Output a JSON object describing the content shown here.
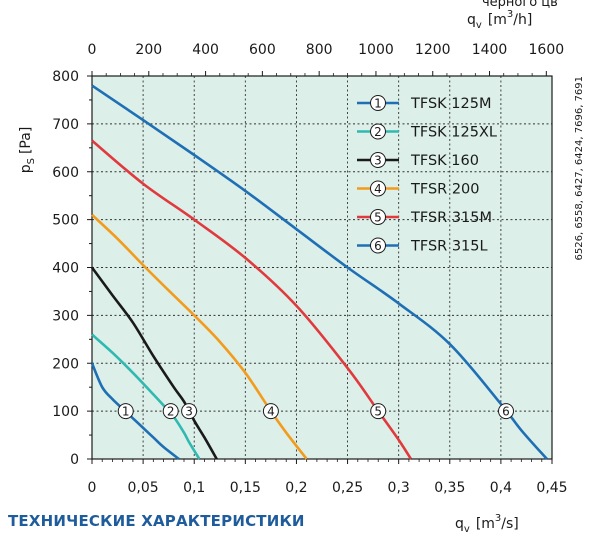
{
  "header_cut_text": "черного цв",
  "section_heading": "ТЕХНИЧЕСКИЕ ХАРАКТЕРИСТИКИ",
  "side_note": "6526, 6558, 6427, 6424, 7696, 7691",
  "chart_data": {
    "type": "line",
    "title": "",
    "ylabel": {
      "main": "p",
      "sub": "S",
      "unit": "[Pa]"
    },
    "xlabel_bottom": {
      "main": "q",
      "sub": "v",
      "unit_pre": "[m",
      "unit_sup": "3",
      "unit_post": "/s]"
    },
    "xlabel_top": {
      "main": "q",
      "sub": "v",
      "unit_pre": "[m",
      "unit_sup": "3",
      "unit_post": "/h]"
    },
    "xlim": [
      0,
      0.45
    ],
    "ylim": [
      0,
      800
    ],
    "x_top_lim": [
      0,
      1620
    ],
    "x_ticks_bottom": [
      "0",
      "0,05",
      "0,1",
      "0,15",
      "0,2",
      "0,25",
      "0,3",
      "0,35",
      "0,4",
      "0,45"
    ],
    "x_ticks_top": [
      "0",
      "200",
      "400",
      "600",
      "800",
      "1000",
      "1200",
      "1400",
      "1600"
    ],
    "y_ticks": [
      "0",
      "100",
      "200",
      "300",
      "400",
      "500",
      "600",
      "700",
      "800"
    ],
    "grid": true,
    "legend_position": "top-right",
    "colors": {
      "plot_bg": "#dcefe9",
      "grid": "#333333"
    },
    "series": [
      {
        "name": "TFSK 125M",
        "marker": "1",
        "color": "#1f6fb5",
        "points": [
          [
            0,
            200
          ],
          [
            0.01,
            150
          ],
          [
            0.02,
            125
          ],
          [
            0.03,
            105
          ],
          [
            0.04,
            85
          ],
          [
            0.05,
            65
          ],
          [
            0.06,
            45
          ],
          [
            0.07,
            25
          ],
          [
            0.085,
            0
          ]
        ],
        "label_at": [
          0.033,
          100
        ]
      },
      {
        "name": "TFSK 125XL",
        "marker": "2",
        "color": "#2fb9b0",
        "points": [
          [
            0,
            260
          ],
          [
            0.02,
            222
          ],
          [
            0.04,
            180
          ],
          [
            0.06,
            135
          ],
          [
            0.07,
            112
          ],
          [
            0.08,
            88
          ],
          [
            0.09,
            55
          ],
          [
            0.095,
            35
          ],
          [
            0.105,
            0
          ]
        ],
        "label_at": [
          0.077,
          100
        ]
      },
      {
        "name": "TFSK 160",
        "marker": "3",
        "color": "#1a1a1a",
        "points": [
          [
            0,
            400
          ],
          [
            0.02,
            342
          ],
          [
            0.04,
            285
          ],
          [
            0.06,
            215
          ],
          [
            0.08,
            150
          ],
          [
            0.09,
            120
          ],
          [
            0.1,
            80
          ],
          [
            0.11,
            45
          ],
          [
            0.122,
            0
          ]
        ],
        "label_at": [
          0.095,
          100
        ]
      },
      {
        "name": "TFSR 200",
        "marker": "4",
        "color": "#f29b1c",
        "points": [
          [
            0,
            510
          ],
          [
            0.025,
            460
          ],
          [
            0.05,
            405
          ],
          [
            0.075,
            352
          ],
          [
            0.1,
            300
          ],
          [
            0.125,
            245
          ],
          [
            0.15,
            180
          ],
          [
            0.175,
            100
          ],
          [
            0.19,
            55
          ],
          [
            0.21,
            0
          ]
        ],
        "label_at": [
          0.175,
          100
        ]
      },
      {
        "name": "TFSR 315M",
        "marker": "5",
        "color": "#e03a3e",
        "points": [
          [
            0,
            665
          ],
          [
            0.05,
            575
          ],
          [
            0.1,
            500
          ],
          [
            0.15,
            420
          ],
          [
            0.2,
            320
          ],
          [
            0.25,
            190
          ],
          [
            0.28,
            100
          ],
          [
            0.3,
            40
          ],
          [
            0.312,
            0
          ]
        ],
        "label_at": [
          0.28,
          100
        ]
      },
      {
        "name": "TFSR 315L",
        "marker": "6",
        "color": "#1f6fb5",
        "points": [
          [
            0,
            780
          ],
          [
            0.05,
            708
          ],
          [
            0.1,
            635
          ],
          [
            0.15,
            560
          ],
          [
            0.2,
            480
          ],
          [
            0.25,
            400
          ],
          [
            0.3,
            325
          ],
          [
            0.35,
            240
          ],
          [
            0.4,
            115
          ],
          [
            0.42,
            60
          ],
          [
            0.445,
            0
          ]
        ],
        "label_at": [
          0.405,
          100
        ]
      }
    ]
  }
}
